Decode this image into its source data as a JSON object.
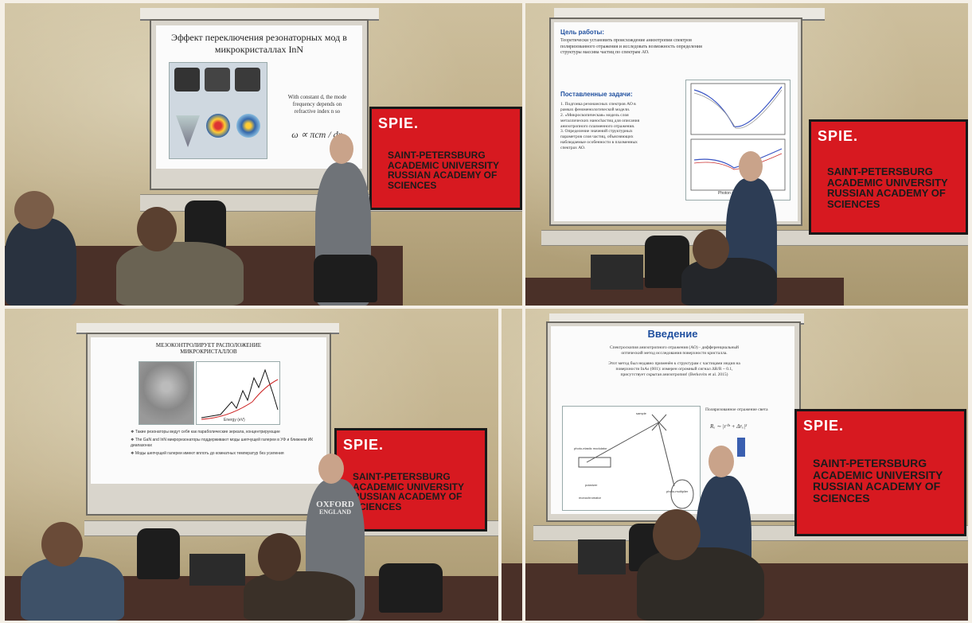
{
  "panel1": {
    "slide_title_line1": "Эффект переключения резонаторных мод в",
    "slide_title_line2": "микрокристаллах InN",
    "slide_text_line1": "With constant d, the mode",
    "slide_text_line2": "frequency depends on",
    "slide_text_line3": "refractive index n so",
    "formula": "ω ∝ πcm / dn",
    "banner_logo": "SPIE.",
    "banner_lines": [
      "SAINT-PETERSBURG",
      "ACADEMIC UNIVERSITY",
      "RUSSIAN ACADEMY OF",
      "SCIENCES"
    ]
  },
  "panel2": {
    "heading1": "Цель работы:",
    "goal_line1": "Теоретически установить происхождение анизотропии спектров",
    "goal_line2": "поляризованного отражения и исследовать возможность определения",
    "goal_line3": "структуры массива частиц по спектрам АО.",
    "heading2": "Поставленные задачи:",
    "task1": "1. Подгонка резонансных спектров АО в",
    "task1b": "рамках феноменологической модели.",
    "task2": "2. «Микроскопическая» модель слоя",
    "task2b": "металлических нанochaстиц для описания",
    "task2c": "анизотропного плазменного отражения.",
    "task3": "3. Определение значений структурных",
    "task3b": "параметров слоя частиц, объясняющих",
    "task3c": "наблюдаемые особенности в плазменных",
    "task3d": "спектрах АО.",
    "axis_xlabel": "Photon energy (eV)",
    "banner_logo": "SPIE.",
    "banner_lines": [
      "SAINT-PETERSBURG",
      "ACADEMIC UNIVERSITY",
      "RUSSIAN ACADEMY OF",
      "SCIENCES"
    ]
  },
  "panel3": {
    "slide_title_line1": "МЕЗОКОНТРОЛИРУЕТ РАСПОЛОЖЕНИЕ",
    "slide_title_line2": "МИКРОКРИСТАЛЛОВ",
    "axis_xlabel": "Energy (eV)",
    "bullet1": "❖ Такие резонаторы ведут себя как параболические зеркала, концентрирующие",
    "bullet2": "❖ The GaN and InN микрорезонаторы поддерживают моды шепчущей галереи в УФ и ближнем ИК диапазонах",
    "bullet3": "❖ Моды шепчущей галереи имеют вплоть до комнатных температур без усиления",
    "shirt_text_1": "OXFORD",
    "shirt_text_2": "ENGLAND",
    "banner_logo": "SPIE.",
    "banner_lines": [
      "SAINT-PETERSBURG",
      "ACADEMIC UNIVERSITY",
      "RUSSIAN ACADEMY OF",
      "SCIENCES"
    ]
  },
  "panel4": {
    "slide_title": "Введение",
    "intro_line1": "Спектроскопия анизотропного отражения (АО) - дифференциальный",
    "intro_line2": "оптический метод исследования поверхности кристалла.",
    "intro_line3": "Этот метод был недавно применён к структурам с частицами индия на",
    "intro_line4": "поверхности InAs (001): измерен огромный сигнал ΔR/R ~ 0.1,",
    "intro_line5": "присутствует скрытая анизотропия! (Berkovits et al. 2015)",
    "polarized_label": "Поляризованное отражение света",
    "formula": "Rₓ ∼ |r⁰ˣ + Δrₓ|²",
    "diagram_labels": [
      "sample",
      "photo-elastic modulator",
      "polarizer",
      "monochromator",
      "photo-multiplier"
    ],
    "banner_logo": "SPIE.",
    "banner_lines": [
      "SAINT-PETERSBURG",
      "ACADEMIC UNIVERSITY",
      "RUSSIAN ACADEMY OF",
      "SCIENCES"
    ]
  }
}
